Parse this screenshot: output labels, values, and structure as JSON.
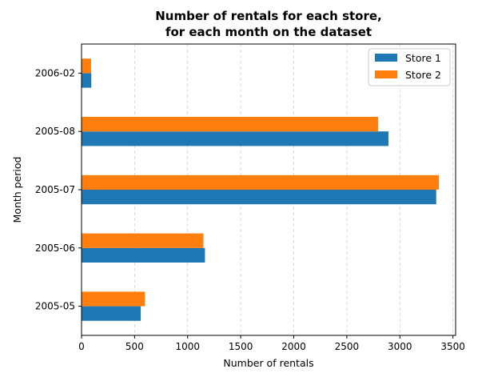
{
  "chart_data": {
    "type": "bar",
    "orientation": "horizontal",
    "title_line1": "Number of rentals for each store,",
    "title_line2": "for each month on the dataset",
    "xlabel": "Number of rentals",
    "ylabel": "Month period",
    "categories": [
      "2005-05",
      "2005-06",
      "2005-07",
      "2005-08",
      "2006-02"
    ],
    "series": [
      {
        "name": "Store 1",
        "color": "#1f77b4",
        "values": [
          558,
          1163,
          3342,
          2892,
          92
        ]
      },
      {
        "name": "Store 2",
        "color": "#ff7f0e",
        "values": [
          598,
          1148,
          3367,
          2794,
          90
        ]
      }
    ],
    "xlim": [
      0,
      3525
    ],
    "xticks": [
      0,
      500,
      1000,
      1500,
      2000,
      2500,
      3000,
      3500
    ],
    "xtick_labels": [
      "0",
      "500",
      "1000",
      "1500",
      "2000",
      "2500",
      "3000",
      "3500"
    ],
    "grid": "x, dashed",
    "legend_position": "top-right"
  }
}
